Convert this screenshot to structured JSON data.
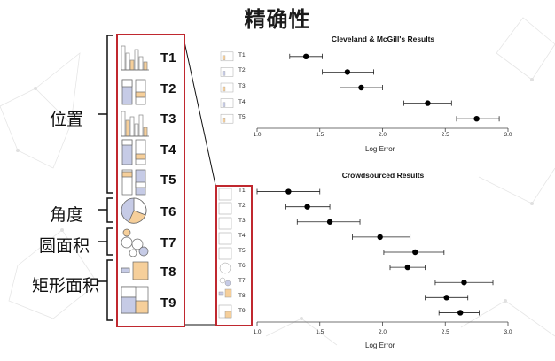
{
  "title": "精确性",
  "categories": [
    {
      "label": "位置",
      "tasks": [
        "T1",
        "T2",
        "T3",
        "T4",
        "T5"
      ]
    },
    {
      "label": "角度",
      "tasks": [
        "T6"
      ]
    },
    {
      "label": "圆面积",
      "tasks": [
        "T7"
      ]
    },
    {
      "label": "矩形面积",
      "tasks": [
        "T8",
        "T9"
      ]
    }
  ],
  "task_labels": [
    "T1",
    "T2",
    "T3",
    "T4",
    "T5",
    "T6",
    "T7",
    "T8",
    "T9"
  ],
  "colors": {
    "highlight": "#c0282f",
    "blue": "#c6cbe6",
    "orange": "#f6cf9a",
    "gray": "#bdbdbd"
  },
  "chart_data": [
    {
      "type": "scatter",
      "title": "Cleveland & McGill's Results",
      "xlabel": "Log Error",
      "xlim": [
        1.0,
        3.0
      ],
      "xticks": [
        "1.0",
        "1.5",
        "2.0",
        "2.5",
        "3.0"
      ],
      "rows": [
        {
          "label": "T1",
          "value": 1.39,
          "low": 1.26,
          "high": 1.52
        },
        {
          "label": "T2",
          "value": 1.72,
          "low": 1.52,
          "high": 1.93
        },
        {
          "label": "T3",
          "value": 1.83,
          "low": 1.66,
          "high": 2.0
        },
        {
          "label": "T4",
          "value": 2.36,
          "low": 2.17,
          "high": 2.55
        },
        {
          "label": "T5",
          "value": 2.75,
          "low": 2.59,
          "high": 2.93
        }
      ]
    },
    {
      "type": "scatter",
      "title": "Crowdsourced Results",
      "xlabel": "Log Error",
      "xlim": [
        1.0,
        3.0
      ],
      "xticks": [
        "1.0",
        "1.5",
        "2.0",
        "2.5",
        "3.0"
      ],
      "rows": [
        {
          "label": "T1",
          "value": 1.25,
          "low": 1.0,
          "high": 1.5
        },
        {
          "label": "T2",
          "value": 1.4,
          "low": 1.23,
          "high": 1.58
        },
        {
          "label": "T3",
          "value": 1.58,
          "low": 1.32,
          "high": 1.82
        },
        {
          "label": "T4",
          "value": 1.98,
          "low": 1.76,
          "high": 2.22
        },
        {
          "label": "T5",
          "value": 2.26,
          "low": 2.01,
          "high": 2.49
        },
        {
          "label": "T6",
          "value": 2.2,
          "low": 2.06,
          "high": 2.34
        },
        {
          "label": "T7",
          "value": 2.65,
          "low": 2.42,
          "high": 2.88
        },
        {
          "label": "T8",
          "value": 2.51,
          "low": 2.34,
          "high": 2.68
        },
        {
          "label": "T9",
          "value": 2.62,
          "low": 2.45,
          "high": 2.77
        }
      ]
    }
  ]
}
